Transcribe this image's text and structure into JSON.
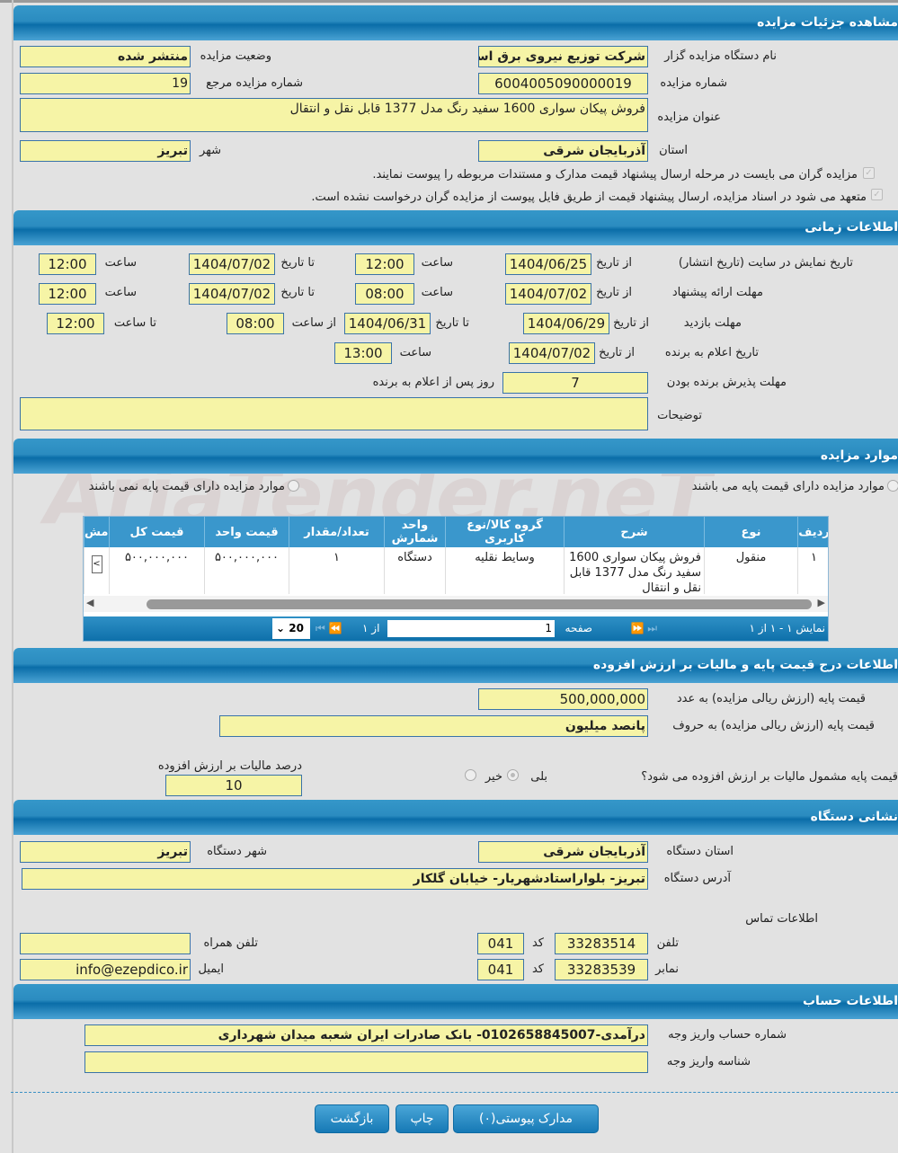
{
  "details": {
    "title": "مشاهده جزئیات مزایده",
    "organizer_label": "نام دستگاه مزایده گزار",
    "organizer": "شرکت توزیع نیروی برق استان",
    "status_label": "وضعیت مزایده",
    "status": "منتشر شده",
    "number_label": "شماره مزایده",
    "number": "6004005090000019",
    "ref_label": "شماره مزایده مرجع",
    "ref": "19",
    "subject_label": "عنوان مزایده",
    "subject": "فروش پیکان سواری 1600 سفید رنگ مدل 1377 قابل نقل و انتقال",
    "province_label": "استان",
    "province": "آذربایجان شرقی",
    "city_label": "شهر",
    "city": "تبریز",
    "check1": "مزایده گران می بایست در مرحله ارسال پیشنهاد قیمت مدارک و مستندات مربوطه را پیوست نمایند.",
    "check2": "متعهد می شود در اسناد مزایده، ارسال پیشنهاد قیمت از طریق فایل پیوست از مزایده گران درخواست نشده است."
  },
  "timing": {
    "title": "اطلاعات زمانی",
    "from_date": "از تاریخ",
    "to_date": "تا تاریخ",
    "time": "ساعت",
    "from_time": "از ساعت",
    "to_time": "تا ساعت",
    "publish_label": "تاریخ نمایش در سایت (تاریخ انتشار)",
    "publish_from": "1404/06/25",
    "publish_from_time": "12:00",
    "publish_to": "1404/07/02",
    "publish_to_time": "12:00",
    "offer_label": "مهلت ارائه پیشنهاد",
    "offer_from": "1404/07/02",
    "offer_from_time": "08:00",
    "offer_to": "1404/07/02",
    "offer_to_time": "12:00",
    "visit_label": "مهلت بازدید",
    "visit_from": "1404/06/29",
    "visit_to": "1404/06/31",
    "visit_from_time": "08:00",
    "visit_to_time": "12:00",
    "announce_label": "تاریخ اعلام به برنده",
    "announce_from": "1404/07/02",
    "announce_time": "13:00",
    "accept_label": "مهلت پذیرش برنده بودن",
    "accept_days": "7",
    "accept_suffix": "روز پس از اعلام به برنده",
    "notes_label": "توضیحات",
    "notes": ""
  },
  "items": {
    "title": "موارد مزایده",
    "radio_with": "موارد مزایده دارای قیمت پایه می باشند",
    "radio_without": "موارد مزایده دارای قیمت پایه نمی باشند",
    "columns": [
      "ردیف",
      "نوع",
      "شرح",
      "گروه کالا/نوع کاربری",
      "واحد شمارش",
      "تعداد/مقدار",
      "قیمت واحد",
      "قیمت کل",
      "مش"
    ],
    "rows": [
      [
        "۱",
        "منقول",
        "فروش پیکان سواری 1600 سفید رنگ مدل 1377 قابل نقل و انتقال",
        "وسایط نقلیه",
        "دستگاه",
        "۱",
        "۵۰۰,۰۰۰,۰۰۰",
        "۵۰۰,۰۰۰,۰۰۰",
        ">"
      ]
    ],
    "pager": {
      "showing": "نمایش ۱ - ۱ از ۱",
      "page_label": "صفحه",
      "page": "1",
      "of": "از ۱",
      "page_size": "20"
    }
  },
  "price": {
    "title": "اطلاعات درج قیمت پایه و مالیات بر ارزش افزوده",
    "num_label": "قیمت پایه (ارزش ریالی مزایده) به عدد",
    "num": "500,000,000",
    "words_label": "قیمت پایه (ارزش ریالی مزایده) به حروف",
    "words": "پانصد میلیون",
    "vat_question": "قیمت پایه مشمول مالیات بر ارزش افزوده می شود؟",
    "yes": "بلی",
    "no": "خیر",
    "vat_label": "درصد مالیات بر ارزش افزوده",
    "vat": "10"
  },
  "address": {
    "title": "نشانی دستگاه",
    "province_label": "استان دستگاه",
    "province": "آذربایجان شرقی",
    "city_label": "شهر دستگاه",
    "city": "تبریز",
    "address_label": "آدرس دستگاه",
    "address": "تبریز- بلواراستادشهریار- خیابان گلکار",
    "contact_label": "اطلاعات تماس",
    "phone_label": "تلفن",
    "phone": "33283514",
    "phone_code": "041",
    "code_label": "کد",
    "mobile_label": "تلفن همراه",
    "mobile": "",
    "fax_label": "نمابر",
    "fax": "33283539",
    "fax_code": "041",
    "email_label": "ایمیل",
    "email": "info@ezepdico.ir"
  },
  "account": {
    "title": "اطلاعات حساب",
    "acc_label": "شماره حساب واریز وجه",
    "acc": "درآمدی-0102658845007- بانک صادرات ایران شعبه میدان شهرداری",
    "id_label": "شناسه واریز وجه",
    "id": ""
  },
  "buttons": {
    "docs": "مدارک پیوستی(۰)",
    "print": "چاپ",
    "back": "بازگشت"
  },
  "watermark": "AriaTender.neT",
  "colors": {
    "header": "#2b8cc0",
    "field": "#f6f4a6"
  }
}
